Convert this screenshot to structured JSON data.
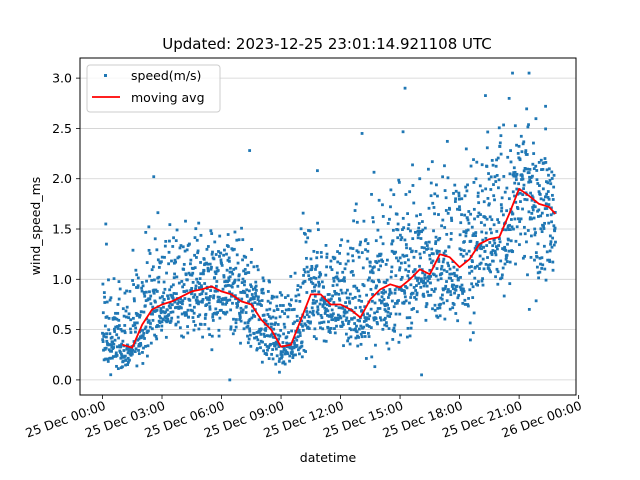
{
  "chart_data": {
    "type": "scatter",
    "title": "Updated: 2023-12-25 23:01:14.921108 UTC",
    "xlabel": "datetime",
    "ylabel": "wind_speed_ms",
    "xlim": [
      "2023-12-24T22:52",
      "2023-12-25T23:52"
    ],
    "ylim": [
      -0.15,
      3.2
    ],
    "y_ticks": [
      0.0,
      0.5,
      1.0,
      1.5,
      2.0,
      2.5,
      3.0
    ],
    "y_tick_labels": [
      "0.0",
      "0.5",
      "1.0",
      "1.5",
      "2.0",
      "2.5",
      "3.0"
    ],
    "x_ticks": [
      "2023-12-25T00:00",
      "2023-12-25T03:00",
      "2023-12-25T06:00",
      "2023-12-25T09:00",
      "2023-12-25T12:00",
      "2023-12-25T15:00",
      "2023-12-25T18:00",
      "2023-12-25T21:00",
      "2023-12-26T00:00"
    ],
    "x_tick_labels": [
      "25 Dec 00:00",
      "25 Dec 03:00",
      "25 Dec 06:00",
      "25 Dec 09:00",
      "25 Dec 12:00",
      "25 Dec 15:00",
      "25 Dec 18:00",
      "25 Dec 21:00",
      "26 Dec 00:00"
    ],
    "grid": "horizontal",
    "legend_position": "top-left",
    "series": [
      {
        "name": "speed(m/s)",
        "kind": "scatter",
        "color": "#1f77b4",
        "envelope_upper": [
          [
            "2023-12-25T00:00",
            1.55
          ],
          [
            "2023-12-25T01:00",
            1.2
          ],
          [
            "2023-12-25T02:00",
            1.6
          ],
          [
            "2023-12-25T02:30",
            2.02
          ],
          [
            "2023-12-25T03:00",
            1.65
          ],
          [
            "2023-12-25T04:00",
            1.85
          ],
          [
            "2023-12-25T05:00",
            1.85
          ],
          [
            "2023-12-25T06:00",
            1.6
          ],
          [
            "2023-12-25T07:00",
            1.7
          ],
          [
            "2023-12-25T08:00",
            1.3
          ],
          [
            "2023-12-25T09:00",
            1.1
          ],
          [
            "2023-12-25T10:00",
            1.95
          ],
          [
            "2023-12-25T11:00",
            1.7
          ],
          [
            "2023-12-25T12:00",
            1.8
          ],
          [
            "2023-12-25T13:00",
            2.45
          ],
          [
            "2023-12-25T14:00",
            2.3
          ],
          [
            "2023-12-25T15:00",
            2.6
          ],
          [
            "2023-12-25T16:00",
            2.4
          ],
          [
            "2023-12-25T17:00",
            2.6
          ],
          [
            "2023-12-25T18:00",
            2.65
          ],
          [
            "2023-12-25T19:00",
            2.85
          ],
          [
            "2023-12-25T20:00",
            3.05
          ],
          [
            "2023-12-25T21:00",
            2.95
          ],
          [
            "2023-12-25T22:00",
            2.8
          ],
          [
            "2023-12-25T22:50",
            2.5
          ]
        ],
        "envelope_lower": [
          [
            "2023-12-25T00:00",
            0.0
          ],
          [
            "2023-12-25T01:00",
            0.0
          ],
          [
            "2023-12-25T02:00",
            0.1
          ],
          [
            "2023-12-25T03:00",
            0.35
          ],
          [
            "2023-12-25T04:00",
            0.3
          ],
          [
            "2023-12-25T05:00",
            0.2
          ],
          [
            "2023-12-25T06:00",
            0.1
          ],
          [
            "2023-12-25T07:00",
            0.05
          ],
          [
            "2023-12-25T08:00",
            0.0
          ],
          [
            "2023-12-25T09:00",
            0.0
          ],
          [
            "2023-12-25T10:00",
            0.15
          ],
          [
            "2023-12-25T11:00",
            0.2
          ],
          [
            "2023-12-25T12:00",
            0.15
          ],
          [
            "2023-12-25T13:00",
            0.1
          ],
          [
            "2023-12-25T14:00",
            0.0
          ],
          [
            "2023-12-25T15:00",
            0.25
          ],
          [
            "2023-12-25T16:00",
            0.3
          ],
          [
            "2023-12-25T17:00",
            0.3
          ],
          [
            "2023-12-25T18:00",
            0.35
          ],
          [
            "2023-12-25T19:00",
            0.3
          ],
          [
            "2023-12-25T20:00",
            0.6
          ],
          [
            "2023-12-25T21:00",
            0.65
          ],
          [
            "2023-12-25T22:00",
            0.55
          ],
          [
            "2023-12-25T22:50",
            0.6
          ]
        ],
        "outliers": [
          [
            "2023-12-25T00:10",
            1.55
          ],
          [
            "2023-12-25T00:12",
            1.35
          ],
          [
            "2023-12-25T02:35",
            2.02
          ],
          [
            "2023-12-25T07:25",
            2.28
          ],
          [
            "2023-12-25T10:50",
            2.08
          ],
          [
            "2023-12-25T13:05",
            2.45
          ],
          [
            "2023-12-25T15:15",
            2.9
          ],
          [
            "2023-12-25T20:40",
            3.05
          ],
          [
            "2023-12-25T21:30",
            3.05
          ],
          [
            "2023-12-25T22:20",
            2.72
          ],
          [
            "2023-12-25T06:25",
            0.0
          ],
          [
            "2023-12-25T16:05",
            0.05
          ]
        ]
      },
      {
        "name": "moving avg",
        "kind": "line",
        "color": "#ff0000",
        "points": [
          [
            "2023-12-25T01:00",
            0.35
          ],
          [
            "2023-12-25T01:30",
            0.32
          ],
          [
            "2023-12-25T02:00",
            0.55
          ],
          [
            "2023-12-25T02:30",
            0.7
          ],
          [
            "2023-12-25T03:00",
            0.75
          ],
          [
            "2023-12-25T03:30",
            0.78
          ],
          [
            "2023-12-25T04:00",
            0.83
          ],
          [
            "2023-12-25T04:30",
            0.88
          ],
          [
            "2023-12-25T05:00",
            0.9
          ],
          [
            "2023-12-25T05:30",
            0.93
          ],
          [
            "2023-12-25T06:00",
            0.88
          ],
          [
            "2023-12-25T06:30",
            0.85
          ],
          [
            "2023-12-25T07:00",
            0.78
          ],
          [
            "2023-12-25T07:30",
            0.75
          ],
          [
            "2023-12-25T08:00",
            0.6
          ],
          [
            "2023-12-25T08:30",
            0.5
          ],
          [
            "2023-12-25T09:00",
            0.33
          ],
          [
            "2023-12-25T09:30",
            0.35
          ],
          [
            "2023-12-25T10:00",
            0.6
          ],
          [
            "2023-12-25T10:30",
            0.85
          ],
          [
            "2023-12-25T11:00",
            0.85
          ],
          [
            "2023-12-25T11:30",
            0.75
          ],
          [
            "2023-12-25T12:00",
            0.75
          ],
          [
            "2023-12-25T12:30",
            0.7
          ],
          [
            "2023-12-25T13:00",
            0.62
          ],
          [
            "2023-12-25T13:30",
            0.8
          ],
          [
            "2023-12-25T14:00",
            0.9
          ],
          [
            "2023-12-25T14:30",
            0.95
          ],
          [
            "2023-12-25T15:00",
            0.92
          ],
          [
            "2023-12-25T15:30",
            1.0
          ],
          [
            "2023-12-25T16:00",
            1.1
          ],
          [
            "2023-12-25T16:30",
            1.05
          ],
          [
            "2023-12-25T17:00",
            1.25
          ],
          [
            "2023-12-25T17:30",
            1.22
          ],
          [
            "2023-12-25T18:00",
            1.12
          ],
          [
            "2023-12-25T18:30",
            1.2
          ],
          [
            "2023-12-25T19:00",
            1.35
          ],
          [
            "2023-12-25T19:30",
            1.4
          ],
          [
            "2023-12-25T20:00",
            1.42
          ],
          [
            "2023-12-25T20:30",
            1.65
          ],
          [
            "2023-12-25T21:00",
            1.9
          ],
          [
            "2023-12-25T21:30",
            1.83
          ],
          [
            "2023-12-25T22:00",
            1.75
          ],
          [
            "2023-12-25T22:30",
            1.72
          ],
          [
            "2023-12-25T22:50",
            1.65
          ]
        ]
      }
    ]
  }
}
